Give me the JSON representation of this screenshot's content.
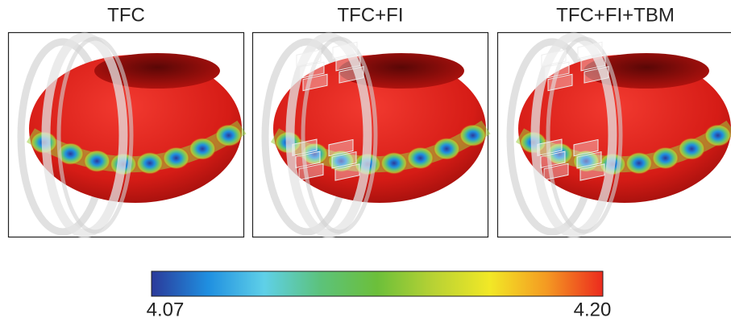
{
  "panels": [
    {
      "title": "TFC"
    },
    {
      "title": "TFC+FI"
    },
    {
      "title": "TFC+FI+TBM"
    }
  ],
  "colorbar": {
    "ticks": [
      4.07,
      {
        "value": 4.2,
        "label": "4.20"
      }
    ],
    "colors": [
      "#2b3a9a",
      "#1f8fe0",
      "#5fd0e8",
      "#5cc27a",
      "#6cbf3a",
      "#b8d234",
      "#f2e826",
      "#f49a22",
      "#ec2a1e"
    ]
  }
}
